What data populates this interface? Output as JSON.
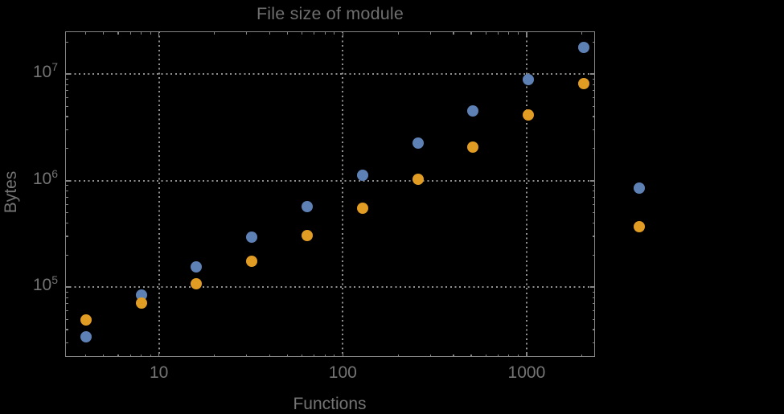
{
  "page": {
    "background": "#000000"
  },
  "colors": {
    "text": "#747474",
    "title": "#6f6f6f",
    "frame": "#858585",
    "grid": "#8f8f8f",
    "series_blue": "#5e81b5",
    "series_orange": "#e19c24"
  },
  "chart_data": {
    "type": "scatter",
    "title": "File size of module",
    "xlabel": "Functions",
    "ylabel": "Bytes",
    "x_scale": "log10",
    "y_scale": "log10",
    "x_log_range": [
      0.4895,
      3.3722
    ],
    "y_log_range": [
      4.3454,
      7.402
    ],
    "x_major_ticks": [
      10,
      100,
      1000
    ],
    "x_tick_labels": [
      "10",
      "100",
      "1000"
    ],
    "y_major_ticks": [
      100000,
      1000000,
      10000000
    ],
    "y_tick_labels": [
      {
        "base": "10",
        "exp": "5"
      },
      {
        "base": "10",
        "exp": "6"
      },
      {
        "base": "10",
        "exp": "7"
      }
    ],
    "grid": "dotted gridlines at decade ticks, frame on all four sides with inward log minor ticks",
    "legend": "none",
    "series": [
      {
        "name": "blue",
        "color": "#5e81b5",
        "x": [
          4,
          8,
          16,
          32,
          64,
          128,
          256,
          512,
          1024,
          2048,
          4096
        ],
        "y": [
          34000,
          85000,
          154000,
          294000,
          572000,
          1130000,
          2270000,
          4500000,
          8960000,
          17700000,
          850000
        ]
      },
      {
        "name": "orange",
        "color": "#e19c24",
        "x": [
          4,
          8,
          16,
          32,
          64,
          128,
          256,
          512,
          1024,
          2048,
          4096
        ],
        "y": [
          49000,
          71000,
          108000,
          174000,
          304000,
          549000,
          1040000,
          2080000,
          4170000,
          8120000,
          370000
        ]
      }
    ]
  }
}
